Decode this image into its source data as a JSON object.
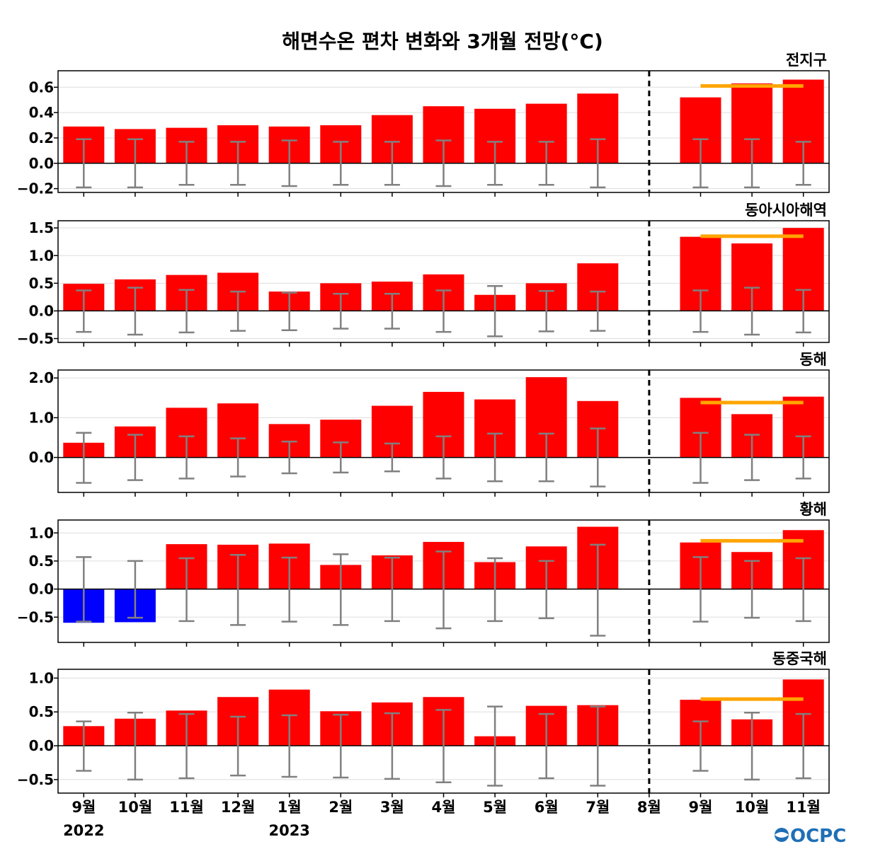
{
  "title": "해면수온 편차 변화와 3개월 전망(°C)",
  "logo": "OCPC",
  "colors": {
    "positive": "#ff0000",
    "negative": "#0000ff",
    "errorbar": "#808080",
    "forecast_line": "#ffa500",
    "divider": "#000000"
  },
  "chart_data": [
    {
      "type": "bar",
      "panel": "전지구",
      "categories": [
        "9월",
        "10월",
        "11월",
        "12월",
        "1월",
        "2월",
        "3월",
        "4월",
        "5월",
        "6월",
        "7월",
        "8월",
        "9월",
        "10월",
        "11월"
      ],
      "values": [
        0.29,
        0.27,
        0.28,
        0.3,
        0.29,
        0.3,
        0.38,
        0.45,
        0.43,
        0.47,
        0.55,
        null,
        0.52,
        0.63,
        0.66
      ],
      "error_upper": [
        0.19,
        0.19,
        0.17,
        0.17,
        0.18,
        0.17,
        0.17,
        0.18,
        0.17,
        0.17,
        0.19,
        null,
        0.19,
        0.19,
        0.17
      ],
      "error_lower": [
        -0.19,
        -0.19,
        -0.17,
        -0.17,
        -0.18,
        -0.17,
        -0.17,
        -0.18,
        -0.17,
        -0.17,
        -0.19,
        null,
        -0.19,
        -0.19,
        -0.17
      ],
      "forecast_mean": 0.61,
      "ylim": [
        -0.23,
        0.73
      ],
      "yticks": [
        -0.2,
        0.0,
        0.2,
        0.4,
        0.6
      ],
      "ytick_labels": [
        "−0.2",
        "0.0",
        "0.2",
        "0.4",
        "0.6"
      ]
    },
    {
      "type": "bar",
      "panel": "동아시아해역",
      "categories": [
        "9월",
        "10월",
        "11월",
        "12월",
        "1월",
        "2월",
        "3월",
        "4월",
        "5월",
        "6월",
        "7월",
        "8월",
        "9월",
        "10월",
        "11월"
      ],
      "values": [
        0.49,
        0.57,
        0.65,
        0.69,
        0.35,
        0.5,
        0.53,
        0.66,
        0.29,
        0.5,
        0.86,
        null,
        1.34,
        1.22,
        1.5
      ],
      "error_upper": [
        0.37,
        0.42,
        0.38,
        0.35,
        0.33,
        0.31,
        0.31,
        0.37,
        0.45,
        0.36,
        0.35,
        null,
        0.37,
        0.42,
        0.38
      ],
      "error_lower": [
        -0.38,
        -0.43,
        -0.39,
        -0.36,
        -0.35,
        -0.32,
        -0.32,
        -0.38,
        -0.46,
        -0.37,
        -0.36,
        null,
        -0.38,
        -0.43,
        -0.39
      ],
      "forecast_mean": 1.35,
      "ylim": [
        -0.57,
        1.63
      ],
      "yticks": [
        -0.5,
        0.0,
        0.5,
        1.0,
        1.5
      ],
      "ytick_labels": [
        "−0.5",
        "0.0",
        "0.5",
        "1.0",
        "1.5"
      ]
    },
    {
      "type": "bar",
      "panel": "동해",
      "categories": [
        "9월",
        "10월",
        "11월",
        "12월",
        "1월",
        "2월",
        "3월",
        "4월",
        "5월",
        "6월",
        "7월",
        "8월",
        "9월",
        "10월",
        "11월"
      ],
      "values": [
        0.37,
        0.78,
        1.25,
        1.36,
        0.84,
        0.95,
        1.3,
        1.65,
        1.46,
        2.02,
        1.42,
        null,
        1.5,
        1.09,
        1.53
      ],
      "error_upper": [
        0.62,
        0.57,
        0.53,
        0.48,
        0.4,
        0.38,
        0.35,
        0.53,
        0.6,
        0.6,
        0.73,
        null,
        0.62,
        0.57,
        0.53
      ],
      "error_lower": [
        -0.64,
        -0.57,
        -0.53,
        -0.48,
        -0.4,
        -0.38,
        -0.35,
        -0.53,
        -0.6,
        -0.6,
        -0.73,
        null,
        -0.64,
        -0.57,
        -0.53
      ],
      "forecast_mean": 1.38,
      "ylim": [
        -0.88,
        2.2
      ],
      "yticks": [
        0.0,
        1.0,
        2.0
      ],
      "ytick_labels": [
        "0.0",
        "1.0",
        "2.0"
      ]
    },
    {
      "type": "bar",
      "panel": "황해",
      "categories": [
        "9월",
        "10월",
        "11월",
        "12월",
        "1월",
        "2월",
        "3월",
        "4월",
        "5월",
        "6월",
        "7월",
        "8월",
        "9월",
        "10월",
        "11월"
      ],
      "values": [
        -0.6,
        -0.59,
        0.8,
        0.79,
        0.81,
        0.43,
        0.6,
        0.84,
        0.48,
        0.76,
        1.11,
        null,
        0.83,
        0.66,
        1.05
      ],
      "error_upper": [
        0.57,
        0.5,
        0.55,
        0.61,
        0.56,
        0.62,
        0.56,
        0.67,
        0.55,
        0.5,
        0.79,
        null,
        0.57,
        0.5,
        0.55
      ],
      "error_lower": [
        -0.58,
        -0.51,
        -0.57,
        -0.64,
        -0.58,
        -0.64,
        -0.57,
        -0.7,
        -0.57,
        -0.52,
        -0.83,
        null,
        -0.58,
        -0.51,
        -0.57
      ],
      "forecast_mean": 0.86,
      "ylim": [
        -0.95,
        1.23
      ],
      "yticks": [
        -0.5,
        0.0,
        0.5,
        1.0
      ],
      "ytick_labels": [
        "−0.5",
        "0.0",
        "0.5",
        "1.0"
      ]
    },
    {
      "type": "bar",
      "panel": "동중국해",
      "categories": [
        "9월",
        "10월",
        "11월",
        "12월",
        "1월",
        "2월",
        "3월",
        "4월",
        "5월",
        "6월",
        "7월",
        "8월",
        "9월",
        "10월",
        "11월"
      ],
      "values": [
        0.29,
        0.4,
        0.52,
        0.72,
        0.83,
        0.51,
        0.64,
        0.72,
        0.14,
        0.59,
        0.6,
        null,
        0.68,
        0.39,
        0.98
      ],
      "error_upper": [
        0.36,
        0.49,
        0.47,
        0.43,
        0.45,
        0.46,
        0.48,
        0.53,
        0.58,
        0.47,
        0.58,
        null,
        0.36,
        0.49,
        0.47
      ],
      "error_lower": [
        -0.37,
        -0.5,
        -0.48,
        -0.44,
        -0.46,
        -0.47,
        -0.49,
        -0.54,
        -0.59,
        -0.48,
        -0.59,
        null,
        -0.37,
        -0.5,
        -0.48
      ],
      "forecast_mean": 0.69,
      "ylim": [
        -0.7,
        1.13
      ],
      "yticks": [
        -0.5,
        0.0,
        0.5,
        1.0
      ],
      "ytick_labels": [
        "−0.5",
        "0.0",
        "0.5",
        "1.0"
      ]
    }
  ],
  "x_axis": {
    "labels": [
      "9월",
      "10월",
      "11월",
      "12월",
      "1월",
      "2월",
      "3월",
      "4월",
      "5월",
      "6월",
      "7월",
      "8월",
      "9월",
      "10월",
      "11월"
    ],
    "years": [
      {
        "label": "2022",
        "index": 0
      },
      {
        "label": "2023",
        "index": 4
      }
    ],
    "divider_index": 11,
    "forecast_indices": [
      12,
      13,
      14
    ]
  }
}
